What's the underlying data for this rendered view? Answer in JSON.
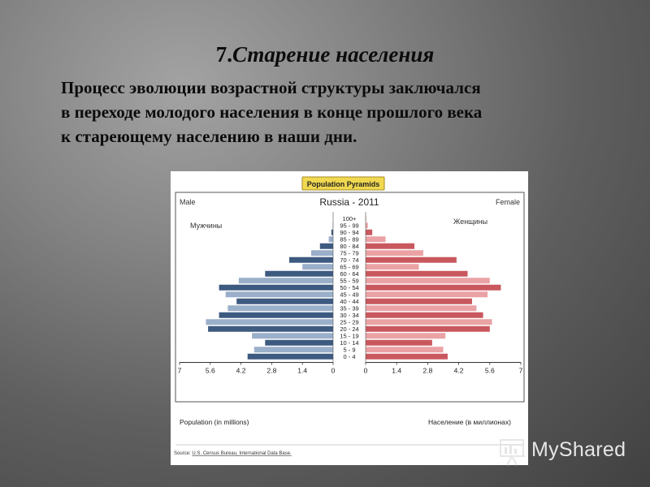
{
  "slide": {
    "title_num": "7.",
    "title_text": "Старение населения",
    "body_lines": [
      "Процесс эволюции возрастной структуры заключался",
      "в переходе молодого населения в конце прошлого века",
      "к стареющему населению в наши дни."
    ]
  },
  "watermark": {
    "text": "MyShared",
    "icon": "presentation-board-icon"
  },
  "chart_data": {
    "type": "bar",
    "orientation": "horizontal-pyramid",
    "badge": "Population Pyramids",
    "title": "Russia - 2011",
    "left_label": "Male",
    "right_label": "Female",
    "left_label_ru": "Мужчины",
    "right_label_ru": "Женщины",
    "xlabel_left": "Population (in millions)",
    "xlabel_right": "Население (в миллионах)",
    "source_prefix": "Source:",
    "source_text": "U.S. Census Bureau, International Data Base.",
    "xlim": [
      0,
      7
    ],
    "ticks_left": [
      "7",
      "5.6",
      "4.2",
      "2.8",
      "1.4",
      "0"
    ],
    "ticks_right": [
      "0",
      "1.4",
      "2.8",
      "4.2",
      "5.6",
      "7"
    ],
    "categories": [
      "100+",
      "95 - 99",
      "90 - 94",
      "85 - 89",
      "80 - 84",
      "75 - 79",
      "70 - 74",
      "65 - 69",
      "60 - 64",
      "55 - 59",
      "50 - 54",
      "45 - 49",
      "40 - 44",
      "35 - 39",
      "30 - 34",
      "25 - 29",
      "20 - 24",
      "15 - 19",
      "10 - 14",
      "5 - 9",
      "0 - 4"
    ],
    "series": [
      {
        "name": "Male",
        "values": [
          0.0,
          0.02,
          0.08,
          0.2,
          0.6,
          1.0,
          2.0,
          1.4,
          3.1,
          4.3,
          5.2,
          4.9,
          4.4,
          4.8,
          5.2,
          5.8,
          5.7,
          3.7,
          3.1,
          3.6,
          3.9
        ]
      },
      {
        "name": "Female",
        "values": [
          0.02,
          0.1,
          0.3,
          0.9,
          2.2,
          2.6,
          4.1,
          2.4,
          4.6,
          5.6,
          6.1,
          5.5,
          4.8,
          5.0,
          5.3,
          5.7,
          5.6,
          3.6,
          3.0,
          3.5,
          3.7
        ]
      }
    ],
    "colors": {
      "male_dark": "#3d5a80",
      "male_light": "#9aafc9",
      "female_dark": "#c9585e",
      "female_light": "#eaa2a5",
      "badge_bg": "#f0d850",
      "badge_border": "#a68a20"
    }
  }
}
